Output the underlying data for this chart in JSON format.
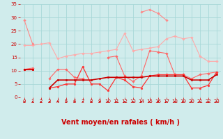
{
  "x": [
    0,
    1,
    2,
    3,
    4,
    5,
    6,
    7,
    8,
    9,
    10,
    11,
    12,
    13,
    14,
    15,
    16,
    17,
    18,
    19,
    20,
    21,
    22,
    23
  ],
  "series": [
    {
      "color": "#ffaaaa",
      "lw": 0.8,
      "marker": "D",
      "ms": 1.8,
      "values": [
        19.5,
        19.5,
        20.0,
        20.5,
        14.5,
        15.5,
        16.0,
        16.5,
        16.5,
        17.0,
        17.5,
        18.0,
        24.0,
        17.5,
        18.0,
        18.5,
        19.0,
        22.0,
        23.0,
        22.0,
        22.5,
        15.5,
        13.5,
        13.5
      ]
    },
    {
      "color": "#ff8888",
      "lw": 0.8,
      "marker": "D",
      "ms": 1.8,
      "values": [
        29.0,
        20.0,
        null,
        null,
        null,
        null,
        null,
        null,
        null,
        null,
        null,
        null,
        null,
        null,
        32.0,
        33.0,
        31.5,
        29.0,
        null,
        null,
        null,
        null,
        null,
        null
      ]
    },
    {
      "color": "#ff6666",
      "lw": 0.8,
      "marker": "D",
      "ms": 1.8,
      "values": [
        10.5,
        11.0,
        null,
        7.0,
        10.5,
        10.5,
        7.5,
        7.0,
        null,
        null,
        15.0,
        15.5,
        8.0,
        6.0,
        8.0,
        17.5,
        17.0,
        16.5,
        8.5,
        8.5,
        7.0,
        8.5,
        9.0,
        9.5
      ]
    },
    {
      "color": "#ff3333",
      "lw": 0.9,
      "marker": "o",
      "ms": 2.0,
      "values": [
        10.5,
        10.5,
        null,
        3.5,
        4.0,
        5.0,
        5.0,
        11.5,
        5.0,
        5.0,
        2.5,
        7.5,
        6.5,
        4.0,
        3.5,
        8.0,
        8.5,
        8.5,
        8.5,
        8.5,
        3.5,
        3.5,
        4.5,
        9.5
      ]
    },
    {
      "color": "#cc0000",
      "lw": 1.2,
      "marker": "o",
      "ms": 1.8,
      "values": [
        10.5,
        10.5,
        null,
        3.5,
        6.5,
        6.5,
        6.5,
        6.5,
        6.5,
        7.0,
        7.5,
        7.5,
        7.5,
        7.5,
        7.5,
        8.0,
        8.0,
        8.0,
        8.0,
        8.0,
        6.5,
        6.5,
        6.5,
        8.5
      ]
    }
  ],
  "xlabel": "Vent moyen/en rafales ( km/h )",
  "xlim": [
    -0.5,
    23.5
  ],
  "ylim": [
    0,
    35
  ],
  "yticks": [
    0,
    5,
    10,
    15,
    20,
    25,
    30,
    35
  ],
  "xticks": [
    0,
    1,
    2,
    3,
    4,
    5,
    6,
    7,
    8,
    9,
    10,
    11,
    12,
    13,
    14,
    15,
    16,
    17,
    18,
    19,
    20,
    21,
    22,
    23
  ],
  "background_color": "#d0ecec",
  "grid_color": "#a8d8d8",
  "tick_color": "#cc0000",
  "xlabel_color": "#cc0000",
  "tick_fontsize": 5.0,
  "xlabel_fontsize": 7.0
}
